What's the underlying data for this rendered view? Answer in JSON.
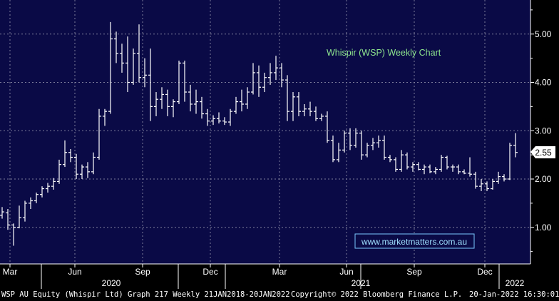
{
  "chart_data": {
    "type": "ohlc",
    "title": "Whispir (WSP) Weekly Chart",
    "watermark": "www.marketmatters.com.au",
    "last_price_label": "2.55",
    "last_price": 2.55,
    "ylim": [
      0.4,
      5.8
    ],
    "y_ticks": [
      "1.00",
      "2.00",
      "3.00",
      "4.00",
      "5.00"
    ],
    "x_month_labels": [
      "Mar",
      "Jun",
      "Sep",
      "Dec",
      "Mar",
      "Jun",
      "Sep",
      "Dec"
    ],
    "x_year_labels": [
      "2020",
      "2021",
      "2022"
    ],
    "grid": true,
    "colors": {
      "background": "#0a0a46",
      "grid": "#7c7c9a",
      "bars": "#ffffff",
      "title": "#8ee58e",
      "watermark_border": "#79c8ff",
      "axis_text": "#ffffff"
    },
    "weeks": [
      [
        1.25,
        1.42,
        1.18,
        1.32
      ],
      [
        1.3,
        1.38,
        0.95,
        1.05
      ],
      [
        1.05,
        1.08,
        0.62,
        1.0
      ],
      [
        1.0,
        1.45,
        0.98,
        1.2
      ],
      [
        1.2,
        1.55,
        1.12,
        1.5
      ],
      [
        1.5,
        1.62,
        1.38,
        1.55
      ],
      [
        1.55,
        1.72,
        1.5,
        1.68
      ],
      [
        1.68,
        1.85,
        1.62,
        1.8
      ],
      [
        1.8,
        1.92,
        1.72,
        1.85
      ],
      [
        1.85,
        2.02,
        1.78,
        1.95
      ],
      [
        1.95,
        2.4,
        1.9,
        2.3
      ],
      [
        2.3,
        2.8,
        2.25,
        2.55
      ],
      [
        2.55,
        2.62,
        2.35,
        2.45
      ],
      [
        2.45,
        2.52,
        2.0,
        2.1
      ],
      [
        2.1,
        2.3,
        2.0,
        2.25
      ],
      [
        2.25,
        2.35,
        2.02,
        2.15
      ],
      [
        2.15,
        2.55,
        2.1,
        2.45
      ],
      [
        2.45,
        3.45,
        2.4,
        3.3
      ],
      [
        3.3,
        3.45,
        3.1,
        3.4
      ],
      [
        3.4,
        5.25,
        3.35,
        4.9
      ],
      [
        4.9,
        5.05,
        4.4,
        4.6
      ],
      [
        4.6,
        4.8,
        4.2,
        4.4
      ],
      [
        4.4,
        4.95,
        3.8,
        4.0
      ],
      [
        4.0,
        4.7,
        3.95,
        4.6
      ],
      [
        4.6,
        5.2,
        4.0,
        4.1
      ],
      [
        4.1,
        4.5,
        3.9,
        4.15
      ],
      [
        4.15,
        4.7,
        3.2,
        3.5
      ],
      [
        3.5,
        3.8,
        3.3,
        3.65
      ],
      [
        3.65,
        3.9,
        3.45,
        3.75
      ],
      [
        3.75,
        3.85,
        3.3,
        3.5
      ],
      [
        3.5,
        3.65,
        3.28,
        3.6
      ],
      [
        3.6,
        4.45,
        3.55,
        4.4
      ],
      [
        4.4,
        4.45,
        3.6,
        3.8
      ],
      [
        3.8,
        3.95,
        3.4,
        3.55
      ],
      [
        3.55,
        3.85,
        3.35,
        3.6
      ],
      [
        3.6,
        3.7,
        3.25,
        3.35
      ],
      [
        3.35,
        3.45,
        3.1,
        3.2
      ],
      [
        3.2,
        3.32,
        3.12,
        3.25
      ],
      [
        3.25,
        3.38,
        3.15,
        3.2
      ],
      [
        3.2,
        3.28,
        3.12,
        3.18
      ],
      [
        3.18,
        3.45,
        3.1,
        3.4
      ],
      [
        3.4,
        3.7,
        3.35,
        3.6
      ],
      [
        3.6,
        3.85,
        3.4,
        3.55
      ],
      [
        3.55,
        3.9,
        3.45,
        3.8
      ],
      [
        3.8,
        4.4,
        3.75,
        4.2
      ],
      [
        4.2,
        4.35,
        3.7,
        3.9
      ],
      [
        3.9,
        4.2,
        3.8,
        4.1
      ],
      [
        4.1,
        4.4,
        3.95,
        4.2
      ],
      [
        4.2,
        4.55,
        4.05,
        4.3
      ],
      [
        4.3,
        4.4,
        3.9,
        4.05
      ],
      [
        4.05,
        4.15,
        3.2,
        3.4
      ],
      [
        3.4,
        3.8,
        3.2,
        3.7
      ],
      [
        3.7,
        3.8,
        3.3,
        3.4
      ],
      [
        3.4,
        3.55,
        3.3,
        3.45
      ],
      [
        3.45,
        3.6,
        3.3,
        3.4
      ],
      [
        3.4,
        3.5,
        3.2,
        3.25
      ],
      [
        3.25,
        3.35,
        3.2,
        3.3
      ],
      [
        3.3,
        3.4,
        2.75,
        2.8
      ],
      [
        2.8,
        2.9,
        2.35,
        2.4
      ],
      [
        2.4,
        2.75,
        2.35,
        2.6
      ],
      [
        2.6,
        3.0,
        2.55,
        2.95
      ],
      [
        2.95,
        3.05,
        2.6,
        2.7
      ],
      [
        2.7,
        3.05,
        2.65,
        2.95
      ],
      [
        2.95,
        3.0,
        2.4,
        2.5
      ],
      [
        2.5,
        2.75,
        2.45,
        2.7
      ],
      [
        2.7,
        2.85,
        2.6,
        2.75
      ],
      [
        2.75,
        2.9,
        2.65,
        2.8
      ],
      [
        2.8,
        2.9,
        2.4,
        2.45
      ],
      [
        2.45,
        2.5,
        2.35,
        2.4
      ],
      [
        2.4,
        2.45,
        2.15,
        2.2
      ],
      [
        2.2,
        2.6,
        2.15,
        2.5
      ],
      [
        2.5,
        2.55,
        2.2,
        2.25
      ],
      [
        2.25,
        2.35,
        2.15,
        2.3
      ],
      [
        2.3,
        2.35,
        2.18,
        2.2
      ],
      [
        2.2,
        2.3,
        2.1,
        2.25
      ],
      [
        2.25,
        2.3,
        2.12,
        2.15
      ],
      [
        2.15,
        2.25,
        2.1,
        2.2
      ],
      [
        2.2,
        2.5,
        2.15,
        2.45
      ],
      [
        2.45,
        2.48,
        2.2,
        2.25
      ],
      [
        2.25,
        2.3,
        2.15,
        2.25
      ],
      [
        2.25,
        2.3,
        2.1,
        2.15
      ],
      [
        2.15,
        2.2,
        2.1,
        2.12
      ],
      [
        2.12,
        2.45,
        2.05,
        2.1
      ],
      [
        2.1,
        2.15,
        1.8,
        1.85
      ],
      [
        1.85,
        2.0,
        1.75,
        1.9
      ],
      [
        1.9,
        1.95,
        1.75,
        1.8
      ],
      [
        1.8,
        2.0,
        1.78,
        1.95
      ],
      [
        1.95,
        2.15,
        1.9,
        2.05
      ],
      [
        2.05,
        2.1,
        1.95,
        2.0
      ],
      [
        2.0,
        2.75,
        1.98,
        2.7
      ],
      [
        2.7,
        2.95,
        2.45,
        2.55
      ]
    ]
  },
  "footer": {
    "left": "WSP AU Equity (Whispir Ltd) Graph 217  Weekly 21JAN2018-20JAN2022",
    "center": "Copyright© 2022 Bloomberg Finance L.P.",
    "right": "20-Jan-2022 16:30:01"
  }
}
